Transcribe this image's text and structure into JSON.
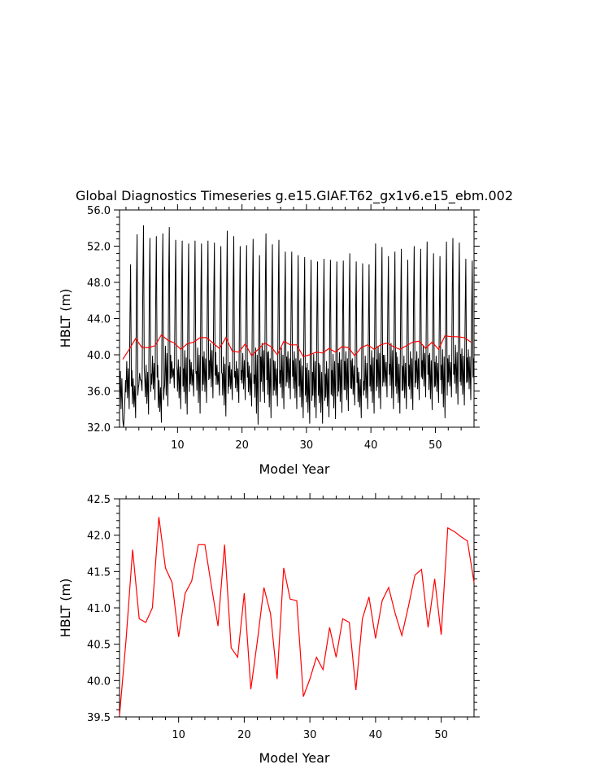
{
  "title": "Global Diagnostics Timeseries g.e15.GIAF.T62_gx1v6.e15_ebm.002",
  "chart_data": [
    {
      "type": "line",
      "xlabel": "Model Year",
      "ylabel": "HBLT (m)",
      "xlim": [
        1,
        56
      ],
      "ylim": [
        32.0,
        56.0
      ],
      "xticks": [
        10,
        20,
        30,
        40,
        50
      ],
      "yticks": [
        32.0,
        36.0,
        40.0,
        44.0,
        48.0,
        52.0,
        56.0
      ],
      "ytick_labels": [
        "32.0",
        "36.0",
        "40.0",
        "44.0",
        "48.0",
        "52.0",
        "56.0"
      ],
      "series": [
        {
          "kind": "monthly",
          "color": "#000000",
          "annual_max": [
            33.0,
            50.0,
            53.3,
            54.3,
            52.9,
            53.1,
            53.4,
            54.1,
            52.7,
            52.6,
            52.3,
            52.6,
            52.3,
            52.6,
            52.4,
            52.0,
            53.7,
            53.1,
            52.0,
            52.1,
            52.8,
            51.0,
            53.4,
            52.2,
            52.7,
            51.4,
            51.4,
            51.0,
            50.8,
            50.5,
            50.3,
            50.6,
            50.5,
            50.3,
            50.4,
            51.2,
            50.3,
            50.1,
            50.0,
            52.3,
            51.9,
            50.9,
            51.4,
            51.7,
            50.5,
            52.0,
            51.7,
            52.5,
            51.2,
            50.9,
            52.5,
            52.9,
            52.4,
            50.6,
            50.4,
            50.2
          ],
          "annual_min": [
            32.8,
            34.0,
            33.0,
            36.0,
            33.4,
            35.0,
            32.5,
            34.3,
            36.3,
            34.0,
            33.4,
            35.4,
            33.5,
            34.7,
            35.2,
            35.5,
            33.2,
            35.0,
            34.7,
            35.0,
            34.3,
            32.3,
            34.7,
            33.0,
            34.3,
            34.0,
            35.1,
            34.0,
            33.0,
            32.4,
            33.0,
            32.4,
            33.1,
            32.9,
            33.6,
            33.8,
            34.4,
            33.0,
            34.0,
            33.5,
            34.0,
            35.3,
            34.0,
            33.5,
            34.0,
            33.9,
            35.0,
            35.3,
            33.9,
            34.7,
            33.0,
            35.3,
            34.5,
            34.4,
            35.0,
            34.9
          ],
          "secondary_peak": [
            38.2,
            39.3,
            37.4,
            38.0,
            38.9,
            39.9,
            37.2,
            41.0,
            39.3,
            39.5,
            40.5,
            39.2,
            40.8,
            40.4,
            41.3,
            38.9,
            39.8,
            39.2,
            39.3,
            40.2,
            38.8,
            40.8,
            41.3,
            40.4,
            39.3,
            40.8,
            40.4,
            40.4,
            39.6,
            39.1,
            40.1,
            38.9,
            39.3,
            40.1,
            40.3,
            40.4,
            39.6,
            38.1,
            39.9,
            40.5,
            41.0,
            40.0,
            41.3,
            39.8,
            39.9,
            40.4,
            40.4,
            41.0,
            40.2,
            39.9,
            40.6,
            40.0,
            41.1,
            40.7,
            40.6,
            40.6
          ]
        },
        {
          "kind": "annual_mean",
          "color": "#ff0000",
          "x": [
            1.5,
            2.5,
            3.5,
            4.5,
            5.5,
            6.5,
            7.5,
            8.5,
            9.5,
            10.5,
            11.5,
            12.5,
            13.5,
            14.5,
            15.5,
            16.5,
            17.5,
            18.5,
            19.5,
            20.5,
            21.5,
            22.5,
            23.5,
            24.5,
            25.5,
            26.5,
            27.5,
            28.5,
            29.5,
            30.5,
            31.5,
            32.5,
            33.5,
            34.5,
            35.5,
            36.5,
            37.5,
            38.5,
            39.5,
            40.5,
            41.5,
            42.5,
            43.5,
            44.5,
            45.5,
            46.5,
            47.5,
            48.5,
            49.5,
            50.5,
            51.5,
            52.5,
            53.5,
            54.5,
            55.5
          ],
          "values": [
            39.5,
            40.6,
            41.8,
            40.8,
            40.8,
            41.0,
            42.2,
            41.6,
            41.3,
            40.6,
            41.2,
            41.4,
            41.9,
            41.9,
            41.3,
            40.7,
            41.9,
            40.4,
            40.3,
            41.2,
            39.9,
            40.6,
            41.3,
            40.9,
            40.0,
            41.5,
            41.1,
            41.1,
            39.8,
            40.0,
            40.3,
            40.2,
            40.7,
            40.3,
            40.9,
            40.8,
            39.9,
            40.8,
            41.1,
            40.6,
            41.1,
            41.3,
            40.9,
            40.6,
            41.0,
            41.4,
            41.5,
            40.7,
            41.4,
            40.6,
            42.1,
            42.0,
            42.0,
            41.9,
            41.4
          ]
        }
      ]
    },
    {
      "type": "line",
      "xlabel": "Model Year",
      "ylabel": "HBLT (m)",
      "xlim": [
        1,
        55
      ],
      "ylim": [
        39.5,
        42.5
      ],
      "xticks": [
        10,
        20,
        30,
        40,
        50
      ],
      "yticks": [
        39.5,
        40.0,
        40.5,
        41.0,
        41.5,
        42.0,
        42.5
      ],
      "ytick_labels": [
        "39.5",
        "40.0",
        "40.5",
        "41.0",
        "41.5",
        "42.0",
        "42.5"
      ],
      "series": [
        {
          "kind": "annual_mean",
          "color": "#ff0000",
          "x": [
            1,
            2,
            3,
            4,
            5,
            6,
            7,
            8,
            9,
            10,
            11,
            12,
            13,
            14,
            15,
            16,
            17,
            18,
            19,
            20,
            21,
            22,
            23,
            24,
            25,
            26,
            27,
            28,
            29,
            30,
            31,
            32,
            33,
            34,
            35,
            36,
            37,
            38,
            39,
            40,
            41,
            42,
            43,
            44,
            45,
            46,
            47,
            48,
            49,
            50,
            51,
            52,
            53,
            54,
            55
          ],
          "values": [
            39.52,
            40.57,
            41.8,
            40.85,
            40.8,
            41.0,
            42.25,
            41.55,
            41.35,
            40.6,
            41.2,
            41.37,
            41.87,
            41.87,
            41.3,
            40.75,
            41.87,
            40.45,
            40.32,
            41.2,
            39.88,
            40.55,
            41.28,
            40.92,
            40.02,
            41.55,
            41.12,
            41.1,
            39.78,
            40.02,
            40.32,
            40.15,
            40.73,
            40.32,
            40.85,
            40.8,
            39.87,
            40.85,
            41.15,
            40.58,
            41.1,
            41.28,
            40.92,
            40.62,
            41.02,
            41.45,
            41.53,
            40.73,
            41.4,
            40.63,
            42.1,
            42.05,
            41.98,
            41.92,
            41.35
          ]
        }
      ]
    }
  ]
}
